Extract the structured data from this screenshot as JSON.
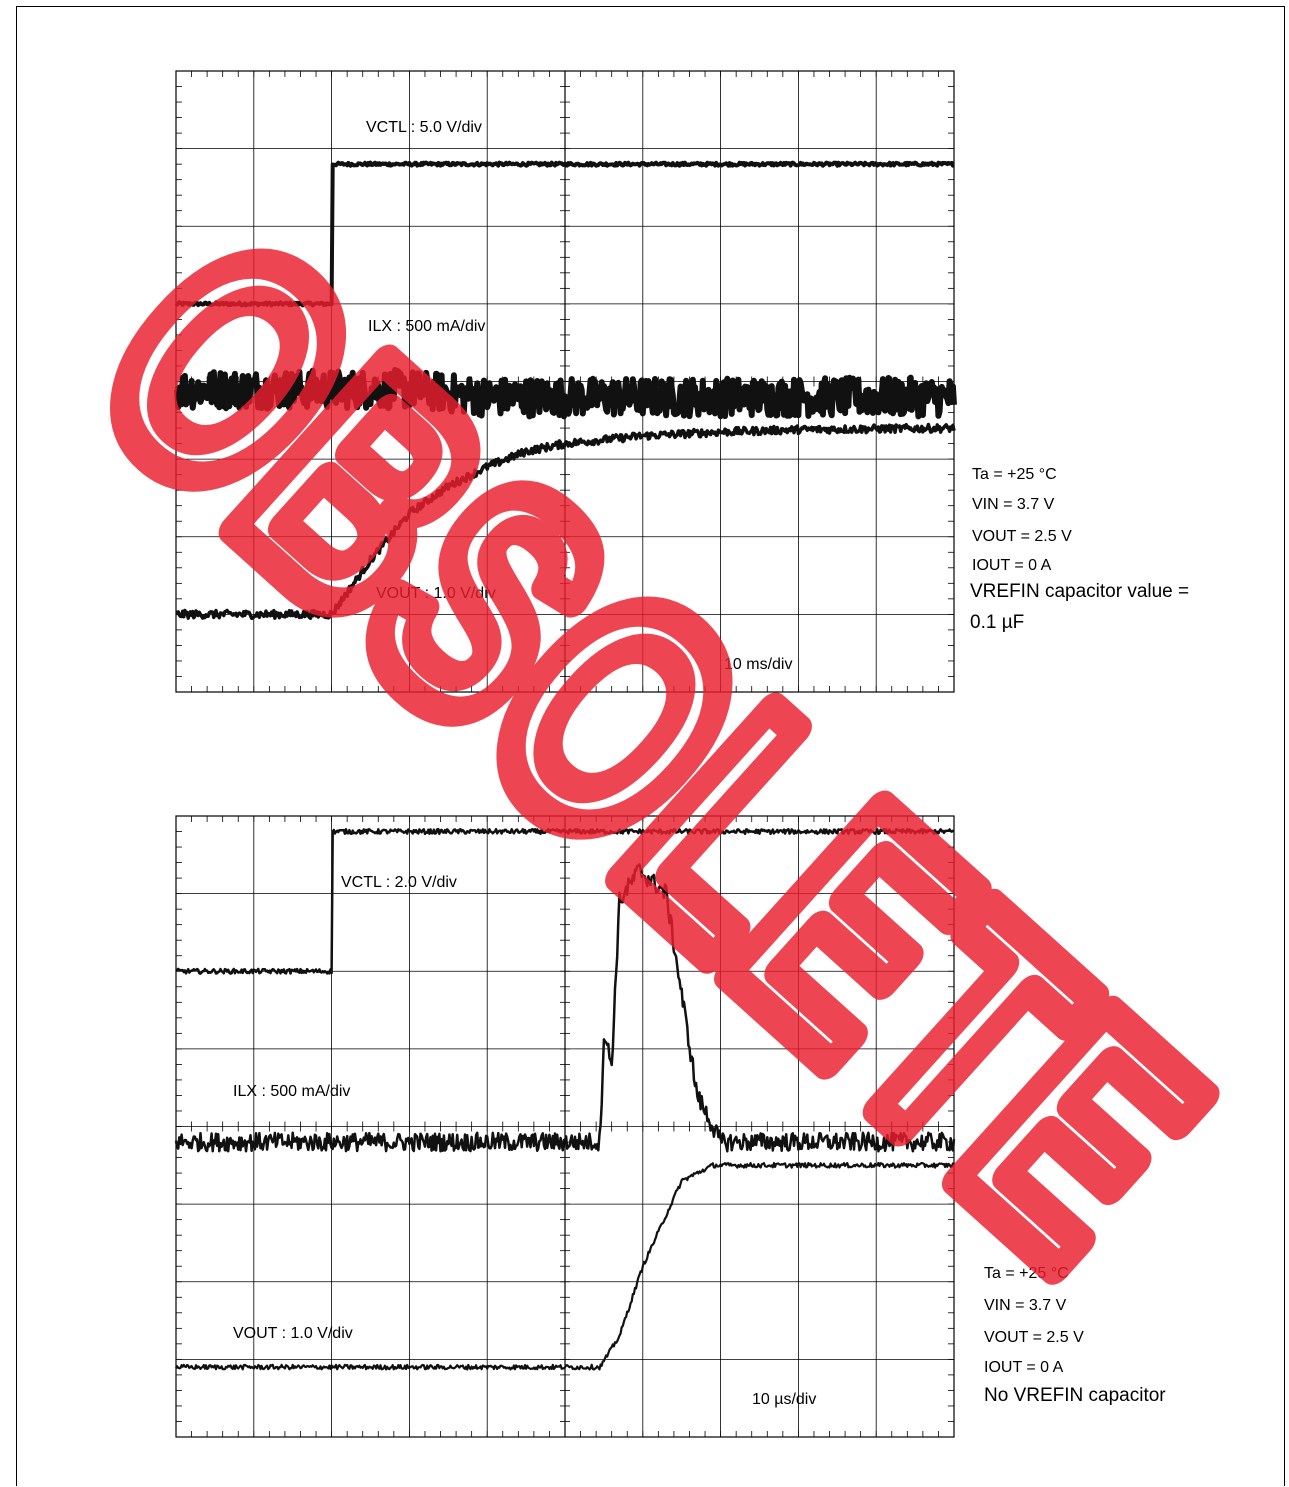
{
  "chart_data": [
    {
      "type": "line",
      "grid": "on",
      "time_div": "10 ms/div",
      "series": [
        {
          "name": "VCTL : 5.0 V/div",
          "x": [
            0,
            2,
            2,
            10
          ],
          "y": [
            5.0,
            5.0,
            6.8,
            6.8
          ]
        },
        {
          "name": "ILX : 500 mA/div",
          "x": [
            0,
            2,
            3,
            4,
            5,
            10
          ],
          "y": [
            3.9,
            3.9,
            3.9,
            3.8,
            3.8,
            3.8
          ]
        },
        {
          "name": "VOUT : 1.0 V/div",
          "x": [
            0,
            2,
            2.5,
            3,
            3.5,
            4,
            4.5,
            5,
            6,
            7,
            8,
            10
          ],
          "y": [
            1.0,
            1.0,
            1.7,
            2.3,
            2.65,
            2.9,
            3.1,
            3.2,
            3.3,
            3.35,
            3.38,
            3.4
          ]
        }
      ]
    },
    {
      "type": "line",
      "grid": "on",
      "time_div": "10 µs/div",
      "series": [
        {
          "name": "VCTL : 2.0 V/div",
          "x": [
            0,
            2,
            2,
            10
          ],
          "y": [
            6.0,
            6.0,
            7.8,
            7.8
          ]
        },
        {
          "name": "ILX : 500 mA/div",
          "x": [
            0,
            5.45,
            5.5,
            5.6,
            5.7,
            5.95,
            6.3,
            6.7,
            7.0,
            10
          ],
          "y": [
            3.8,
            3.8,
            5.2,
            4.8,
            6.9,
            7.3,
            7.0,
            4.4,
            3.8,
            3.8
          ]
        },
        {
          "name": "VOUT : 1.0 V/div",
          "x": [
            0,
            5.45,
            5.7,
            6.0,
            6.5,
            6.9,
            10
          ],
          "y": [
            0.9,
            0.9,
            1.3,
            2.2,
            3.3,
            3.5,
            3.5
          ]
        }
      ]
    }
  ],
  "labels": {
    "top": {
      "vctl": "VCTL : 5.0 V/div",
      "ilx": "ILX : 500 mA/div",
      "vout": "VOUT : 1.0 V/div",
      "time": "10 ms/div"
    },
    "bottom": {
      "vctl": "VCTL : 2.0 V/div",
      "ilx": "ILX : 500 mA/div",
      "vout": "VOUT : 1.0 V/div",
      "time": "10 µs/div"
    }
  },
  "conditions": {
    "top": [
      "Ta = +25 °C",
      "VIN = 3.7 V",
      "VOUT = 2.5 V",
      "IOUT = 0 A",
      "VREFIN capacitor value =",
      "0.1 µF"
    ],
    "bottom": [
      "Ta = +25 °C",
      "VIN = 3.7 V",
      "VOUT = 2.5 V",
      "IOUT = 0 A",
      "No VREFIN capacitor"
    ]
  },
  "watermark": {
    "text": "OBSOLETE",
    "color": "#e8001c"
  }
}
